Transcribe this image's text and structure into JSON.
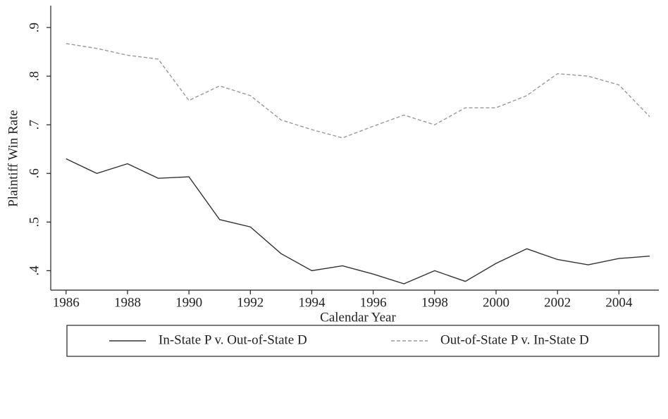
{
  "chart_data": {
    "type": "line",
    "x_label": "Calendar Year",
    "y_label": "Plaintiff Win Rate",
    "x": [
      1986,
      1987,
      1988,
      1989,
      1990,
      1991,
      1992,
      1993,
      1994,
      1995,
      1996,
      1997,
      1998,
      1999,
      2000,
      2001,
      2002,
      2003,
      2004,
      2005
    ],
    "series": [
      {
        "name": "In-State P v. Out-of-State D",
        "color": "#333333",
        "dash": false,
        "values": [
          0.63,
          0.6,
          0.62,
          0.59,
          0.593,
          0.505,
          0.49,
          0.435,
          0.4,
          0.41,
          0.393,
          0.373,
          0.4,
          0.378,
          0.415,
          0.445,
          0.423,
          0.412,
          0.425,
          0.43
        ]
      },
      {
        "name": "Out-of-State P v. In-State D",
        "color": "#9a9a9a",
        "dash": true,
        "values": [
          0.867,
          0.857,
          0.843,
          0.835,
          0.75,
          0.78,
          0.76,
          0.71,
          0.69,
          0.673,
          0.697,
          0.72,
          0.7,
          0.735,
          0.735,
          0.76,
          0.805,
          0.8,
          0.782,
          0.717
        ]
      }
    ],
    "xlim": [
      1985.5,
      2005.3
    ],
    "xticks": [
      1986,
      1988,
      1990,
      1992,
      1994,
      1996,
      1998,
      2000,
      2002,
      2004
    ],
    "ylim": [
      0.36,
      0.945
    ],
    "yticks": [
      {
        "value": 0.4,
        "label": ".4"
      },
      {
        "value": 0.5,
        "label": ".5"
      },
      {
        "value": 0.6,
        "label": ".6"
      },
      {
        "value": 0.7,
        "label": ".7"
      },
      {
        "value": 0.8,
        "label": ".8"
      },
      {
        "value": 0.9,
        "label": ".9"
      }
    ],
    "legend": "bottom"
  }
}
